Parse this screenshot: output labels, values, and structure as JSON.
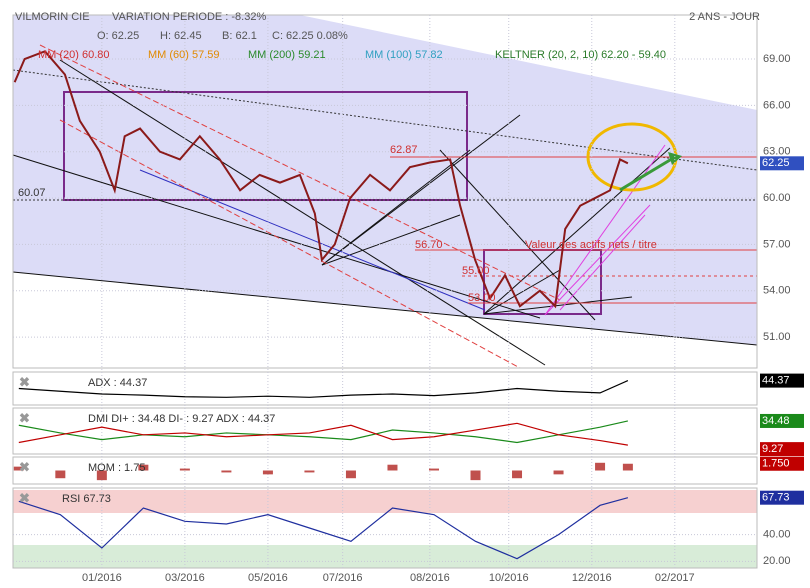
{
  "header": {
    "symbol": "VILMORIN CIE",
    "variation": "VARIATION PERIODE : -8.32%",
    "period": "2 ANS - JOUR"
  },
  "chart_data": [
    {
      "type": "line",
      "legend": [
        "O: 62.25",
        "H: 62.45",
        "B: 62.1",
        "C: 62.25 0.08%",
        "MM (20) 60.80",
        "MM (60) 57.59",
        "MM (200) 59.21",
        "MM (100) 57.82",
        "KELTNER (20, 2, 10) 62.20 - 59.40"
      ],
      "annotations": [
        "62.87",
        "60.07",
        "56.70",
        "55.00",
        "53.00",
        "Valeur des actifs nets / titre"
      ],
      "x": [
        -2.1,
        -1.86,
        -1.37,
        -0.89,
        -0.53,
        -0.05,
        0.31,
        0.55,
        0.92,
        1.4,
        1.88,
        2.36,
        2.84,
        3.33,
        3.8,
        4.29,
        4.77,
        5.13,
        5.3,
        5.61,
        5.98,
        6.46,
        6.94,
        7.42,
        7.9,
        8.39,
        8.63,
        8.99,
        9.35,
        9.71,
        10.07,
        10.55,
        10.92,
        11.16,
        11.52,
        11.88,
        12.24,
        12.48,
        12.67
      ],
      "series": [
        {
          "name": "VILMORIN CIE",
          "color": "#8b1a1a",
          "values": [
            67.5,
            69,
            69.5,
            68,
            65,
            63,
            60.5,
            64,
            64.5,
            63,
            62.5,
            64,
            62.5,
            60.5,
            61.5,
            61,
            61.5,
            59,
            56,
            57,
            60,
            61.5,
            60.5,
            62,
            62.3,
            62.5,
            59.5,
            56,
            53.5,
            55,
            53,
            54,
            53,
            58,
            59.5,
            60,
            60.5,
            62.5,
            62.25
          ]
        }
      ],
      "xlim": [
        -2.14,
        15.78
      ],
      "xticks": [
        {
          "value": 0,
          "label": "01/2016"
        },
        {
          "value": 2,
          "label": "03/2016"
        },
        {
          "value": 4,
          "label": "05/2016"
        },
        {
          "value": 5.8,
          "label": "07/2016"
        },
        {
          "value": 7.9,
          "label": "08/2016"
        },
        {
          "value": 9.8,
          "label": "10/2016"
        },
        {
          "value": 11.8,
          "label": "12/2016"
        },
        {
          "value": 13.8,
          "label": "02/2017"
        }
      ],
      "ylim": [
        49,
        71.85
      ],
      "yticks": [
        {
          "value": 51,
          "label": "51.00"
        },
        {
          "value": 54,
          "label": "54.00"
        },
        {
          "value": 57,
          "label": "57.00"
        },
        {
          "value": 60,
          "label": "60.00"
        },
        {
          "value": 63,
          "label": "63.00"
        },
        {
          "value": 66,
          "label": "66.00"
        },
        {
          "value": 69,
          "label": "69.00"
        }
      ],
      "grid": true
    },
    {
      "type": "line",
      "title": "ADX : 44.37",
      "x": [
        -2,
        -1,
        0,
        1,
        2,
        3,
        4,
        5,
        6,
        7,
        8,
        9,
        10,
        11,
        12,
        12.67
      ],
      "xlim": [
        -2.14,
        15.78
      ],
      "ylim": [
        0,
        60
      ],
      "series": [
        {
          "name": "ADX",
          "color": "#000000",
          "values": [
            30,
            25,
            20,
            18,
            15,
            14,
            16,
            14,
            18,
            20,
            17,
            22,
            30,
            25,
            22,
            44.37
          ]
        }
      ]
    },
    {
      "type": "line",
      "title": "DMI DI+ : 34.48 DI- : 9.27 ADX : 44.37",
      "x": [
        -2,
        -1,
        0,
        1,
        2,
        3,
        4,
        5,
        6,
        7,
        8,
        9,
        10,
        11,
        12,
        12.67
      ],
      "xlim": [
        -2.14,
        15.78
      ],
      "ylim": [
        0,
        48
      ],
      "series": [
        {
          "name": "DI+",
          "color": "#1a8a1a",
          "values": [
            30,
            22,
            15,
            20,
            18,
            22,
            20,
            18,
            15,
            25,
            22,
            18,
            12,
            20,
            28,
            34.48
          ]
        },
        {
          "name": "DI-",
          "color": "#c00000",
          "values": [
            12,
            20,
            28,
            20,
            22,
            18,
            20,
            22,
            30,
            15,
            18,
            25,
            32,
            20,
            14,
            9.27
          ]
        }
      ]
    },
    {
      "type": "bar",
      "title": "MOM : 1.75",
      "last_label": "1.750",
      "x": [
        -2,
        -1,
        0,
        1,
        2,
        3,
        4,
        5,
        6,
        7,
        8,
        9,
        10,
        11,
        12,
        12.67
      ],
      "xlim": [
        -2.14,
        15.78
      ],
      "ylim": [
        -3.5,
        3.5
      ],
      "series": [
        {
          "name": "MOM",
          "color": "#c0504d",
          "values": [
            1,
            -2,
            -2.5,
            1.5,
            0.5,
            -0.5,
            -1,
            -0.5,
            -2,
            1.5,
            0.5,
            -2.5,
            -2,
            -1,
            2,
            1.75
          ]
        }
      ]
    },
    {
      "type": "line",
      "title": "RSI 67.73",
      "x": [
        -2,
        -1,
        0,
        1,
        2,
        3,
        4,
        5,
        6,
        7,
        8,
        9,
        10,
        11,
        12,
        12.67
      ],
      "xlim": [
        -2.14,
        15.78
      ],
      "ylim": [
        15,
        75
      ],
      "yticks": [
        {
          "value": 40,
          "label": "40.00"
        },
        {
          "value": 20,
          "label": "20.00"
        }
      ],
      "series": [
        {
          "name": "RSI",
          "color": "#1f2f9f",
          "values": [
            65,
            55,
            30,
            60,
            50,
            48,
            55,
            45,
            35,
            60,
            55,
            35,
            22,
            40,
            62,
            67.73
          ]
        }
      ]
    }
  ]
}
